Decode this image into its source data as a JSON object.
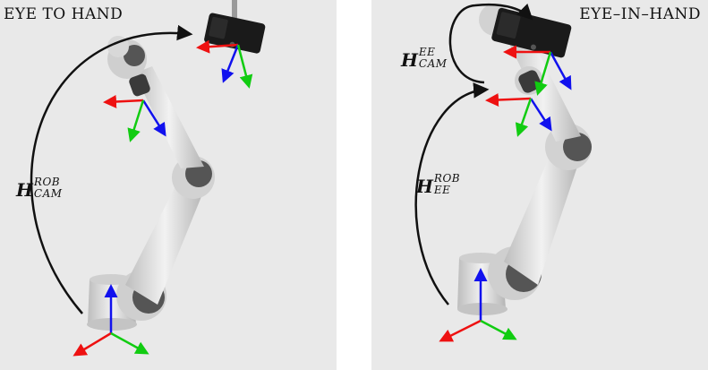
{
  "panels": [
    {
      "title": "EYE TO HAND",
      "transform": {
        "base": "H",
        "superscript": "ROB",
        "subscript": "CAM"
      }
    },
    {
      "title": "EYE–IN–HAND",
      "transforms": [
        {
          "base": "H",
          "superscript": "EE",
          "subscript": "CAM"
        },
        {
          "base": "H",
          "superscript": "ROB",
          "subscript": "EE"
        }
      ]
    }
  ],
  "colors": {
    "x_axis": "#ee1111",
    "y_axis": "#11cc11",
    "z_axis": "#1111ee",
    "robot_body": "#d6d6d6",
    "robot_joint": "#555555",
    "camera": "#1a1a1a",
    "background": "#e9e9e9"
  }
}
